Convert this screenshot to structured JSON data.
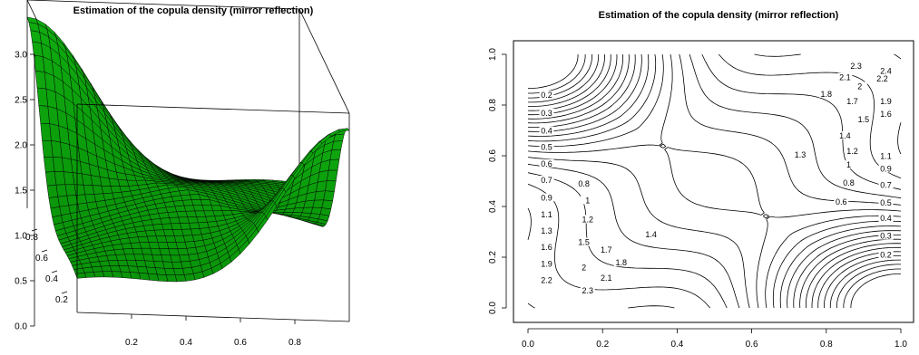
{
  "chart_data": [
    {
      "type": "surface",
      "title": "Estimation of the copula density (mirror reflection)",
      "zlim": [
        0,
        3
      ],
      "z_ticks": [
        "0.0",
        "0.5",
        "1.0",
        "1.5",
        "2.0",
        "2.5",
        "3.0"
      ],
      "x_ticks": [
        "0.2",
        "0.4",
        "0.6",
        "0.8"
      ],
      "y_ticks": [
        "0.2",
        "0.4",
        "0.6",
        "0.8"
      ],
      "surface_color": "#1a9a1a",
      "mesh_color": "#000000"
    },
    {
      "type": "contour",
      "title": "Estimation of the copula density (mirror reflection)",
      "xlim": [
        0,
        1
      ],
      "ylim": [
        0,
        1
      ],
      "x_ticks": [
        "0.0",
        "0.2",
        "0.4",
        "0.6",
        "0.8",
        "1.0"
      ],
      "y_ticks": [
        "0.0",
        "0.2",
        "0.4",
        "0.6",
        "0.8",
        "1.0"
      ],
      "levels": [
        0.2,
        0.3,
        0.4,
        0.5,
        0.6,
        0.7,
        0.8,
        0.9,
        1,
        1.1,
        1.2,
        1.3,
        1.4,
        1.5,
        1.6,
        1.7,
        1.8,
        1.9,
        2,
        2.1,
        2.2,
        2.3,
        2.4
      ],
      "level_labels": [
        {
          "label": "0.2",
          "x": 0.05,
          "y": 0.835
        },
        {
          "label": "0.3",
          "x": 0.05,
          "y": 0.765
        },
        {
          "label": "0.4",
          "x": 0.05,
          "y": 0.695
        },
        {
          "label": "0.5",
          "x": 0.05,
          "y": 0.63
        },
        {
          "label": "0.6",
          "x": 0.05,
          "y": 0.565
        },
        {
          "label": "0.7",
          "x": 0.05,
          "y": 0.5
        },
        {
          "label": "0.8",
          "x": 0.15,
          "y": 0.485
        },
        {
          "label": "0.9",
          "x": 0.05,
          "y": 0.43
        },
        {
          "label": "1",
          "x": 0.16,
          "y": 0.42
        },
        {
          "label": "1.1",
          "x": 0.05,
          "y": 0.365
        },
        {
          "label": "1.2",
          "x": 0.16,
          "y": 0.345
        },
        {
          "label": "1.3",
          "x": 0.05,
          "y": 0.3
        },
        {
          "label": "1.4",
          "x": 0.33,
          "y": 0.285
        },
        {
          "label": "1.5",
          "x": 0.15,
          "y": 0.255
        },
        {
          "label": "1.6",
          "x": 0.05,
          "y": 0.235
        },
        {
          "label": "1.7",
          "x": 0.21,
          "y": 0.225
        },
        {
          "label": "1.9",
          "x": 0.05,
          "y": 0.17
        },
        {
          "label": "1.8",
          "x": 0.25,
          "y": 0.175
        },
        {
          "label": "2",
          "x": 0.15,
          "y": 0.155
        },
        {
          "label": "2.1",
          "x": 0.21,
          "y": 0.115
        },
        {
          "label": "2.2",
          "x": 0.05,
          "y": 0.105
        },
        {
          "label": "2.3",
          "x": 0.16,
          "y": 0.065
        },
        {
          "label": "1.3",
          "x": 0.73,
          "y": 0.6
        },
        {
          "label": "1.4",
          "x": 0.85,
          "y": 0.675
        },
        {
          "label": "1.5",
          "x": 0.9,
          "y": 0.74
        },
        {
          "label": "1.6",
          "x": 0.96,
          "y": 0.76
        },
        {
          "label": "1.7",
          "x": 0.87,
          "y": 0.81
        },
        {
          "label": "1.8",
          "x": 0.8,
          "y": 0.84
        },
        {
          "label": "1.9",
          "x": 0.96,
          "y": 0.81
        },
        {
          "label": "2",
          "x": 0.89,
          "y": 0.87
        },
        {
          "label": "2.1",
          "x": 0.85,
          "y": 0.905
        },
        {
          "label": "2.2",
          "x": 0.95,
          "y": 0.9
        },
        {
          "label": "2.3",
          "x": 0.88,
          "y": 0.95
        },
        {
          "label": "2.4",
          "x": 0.96,
          "y": 0.93
        },
        {
          "label": "1.2",
          "x": 0.87,
          "y": 0.615
        },
        {
          "label": "1.1",
          "x": 0.96,
          "y": 0.595
        },
        {
          "label": "1",
          "x": 0.86,
          "y": 0.56
        },
        {
          "label": "0.9",
          "x": 0.96,
          "y": 0.545
        },
        {
          "label": "0.8",
          "x": 0.86,
          "y": 0.49
        },
        {
          "label": "0.7",
          "x": 0.96,
          "y": 0.48
        },
        {
          "label": "0.6",
          "x": 0.84,
          "y": 0.415
        },
        {
          "label": "0.5",
          "x": 0.96,
          "y": 0.41
        },
        {
          "label": "0.4",
          "x": 0.96,
          "y": 0.35
        },
        {
          "label": "0.3",
          "x": 0.96,
          "y": 0.28
        },
        {
          "label": "0.2",
          "x": 0.96,
          "y": 0.205
        }
      ]
    }
  ]
}
